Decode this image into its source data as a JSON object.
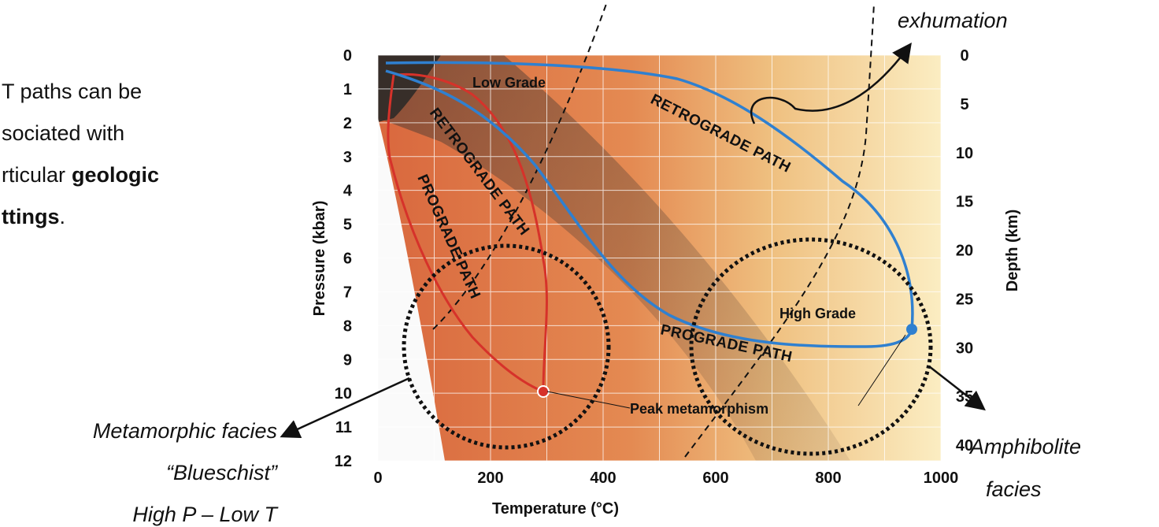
{
  "bullet": {
    "line1": "T paths can be",
    "line2": "sociated with",
    "line3": "rticular",
    "line3_bold": "geologic",
    "line4_bold": "ttings",
    "line4_end": "."
  },
  "diagram": {
    "pressure_axis": {
      "title": "Pressure (kbar)",
      "ticks": [
        0,
        1,
        2,
        3,
        4,
        5,
        6,
        7,
        8,
        9,
        10,
        11,
        12
      ]
    },
    "depth_axis": {
      "title": "Depth (km)",
      "ticks": [
        0,
        5,
        10,
        15,
        20,
        25,
        30,
        35,
        40
      ]
    },
    "temperature_axis": {
      "title": "Temperature (°C)",
      "ticks": [
        0,
        200,
        400,
        600,
        800,
        1000
      ]
    },
    "labels": {
      "low_grade": "Low Grade",
      "high_grade": "High Grade",
      "peak": "Peak metamorphism",
      "retro_blue": "RETROGRADE PATH",
      "retro_red": "RETROGRADE PATH",
      "pro_red": "PROGRADE PATH",
      "pro_blue": "PROGRADE PATH"
    }
  },
  "annotations": {
    "exhumation": "exhumation",
    "blueschist": [
      "Metamorphic facies",
      "“Blueschist”",
      "High P – Low T"
    ],
    "amphibolite": [
      "Amphibolite",
      "facies"
    ]
  }
}
